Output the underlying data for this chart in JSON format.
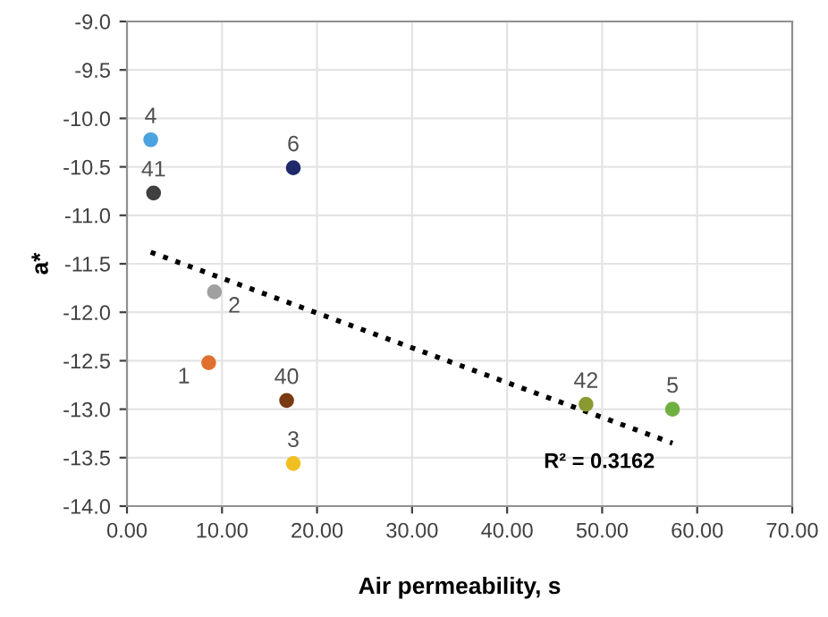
{
  "chart_data": {
    "type": "scatter",
    "xlabel": "Air permeability, s",
    "ylabel": "a*",
    "series": [
      {
        "name": "4",
        "color": "#4aa3df",
        "x": [
          2.5
        ],
        "values": [
          -10.22
        ]
      },
      {
        "name": "41",
        "color": "#404040",
        "x": [
          2.8
        ],
        "values": [
          -10.77
        ]
      },
      {
        "name": "6",
        "color": "#1f2a6b",
        "x": [
          17.5
        ],
        "values": [
          -10.51
        ]
      },
      {
        "name": "2",
        "color": "#a0a0a0",
        "x": [
          9.2
        ],
        "values": [
          -11.79
        ]
      },
      {
        "name": "1",
        "color": "#e07030",
        "x": [
          8.6
        ],
        "values": [
          -12.52
        ]
      },
      {
        "name": "40",
        "color": "#7a3a10",
        "x": [
          16.8
        ],
        "values": [
          -12.91
        ]
      },
      {
        "name": "3",
        "color": "#f0c020",
        "x": [
          17.5
        ],
        "values": [
          -13.56
        ]
      },
      {
        "name": "42",
        "color": "#8a9a30",
        "x": [
          48.3
        ],
        "values": [
          -12.95
        ]
      },
      {
        "name": "5",
        "color": "#70b040",
        "x": [
          57.4
        ],
        "values": [
          -13.0
        ]
      },
      {
        "type": "line",
        "color": "#000000",
        "line_style": "dotted",
        "marker": "none",
        "x": [
          2.5,
          57.4
        ],
        "values": [
          -11.38,
          -13.35
        ]
      }
    ],
    "annotations": [
      "R² = 0.3162"
    ],
    "xlim": [
      0,
      70
    ],
    "ylim": [
      -14,
      -9
    ],
    "xticks": [
      {
        "value": 0,
        "label": "0.00"
      },
      {
        "value": 10,
        "label": "10.00"
      },
      {
        "value": 20,
        "label": "20.00"
      },
      {
        "value": 30,
        "label": "30.00"
      },
      {
        "value": 40,
        "label": "40.00"
      },
      {
        "value": 50,
        "label": "50.00"
      },
      {
        "value": 60,
        "label": "60.00"
      },
      {
        "value": 70,
        "label": "70.00"
      }
    ],
    "yticks": [
      {
        "value": -9,
        "label": "-9.0"
      },
      {
        "value": -9.5,
        "label": "-9.5"
      },
      {
        "value": -10,
        "label": "-10.0"
      },
      {
        "value": -10.5,
        "label": "-10.5"
      },
      {
        "value": -11,
        "label": "-11.0"
      },
      {
        "value": -11.5,
        "label": "-11.5"
      },
      {
        "value": -12,
        "label": "-12.0"
      },
      {
        "value": -12.5,
        "label": "-12.5"
      },
      {
        "value": -13,
        "label": "-13.0"
      },
      {
        "value": -13.5,
        "label": "-13.5"
      },
      {
        "value": -14,
        "label": "-14.0"
      }
    ],
    "grid": true,
    "marker": "circle"
  }
}
